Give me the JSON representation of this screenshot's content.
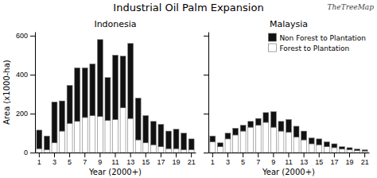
{
  "title": "Industrial Oil Palm Expansion",
  "annotations": [
    "TheTreeMap"
  ],
  "chart_data": [
    {
      "type": "bar",
      "stacked": true,
      "title": "Indonesia",
      "xlabel": "Year (2000+)",
      "ylabel": "Area (x1000-ha)",
      "categories": [
        1,
        null,
        3,
        null,
        5,
        null,
        7,
        null,
        9,
        null,
        11,
        null,
        13,
        null,
        15,
        null,
        17,
        null,
        19,
        null,
        21
      ],
      "series": [
        {
          "color": "#ffffff",
          "values": [
            20,
            15,
            50,
            110,
            150,
            160,
            180,
            190,
            185,
            165,
            170,
            230,
            175,
            65,
            50,
            40,
            30,
            20,
            20,
            15,
            15
          ]
        },
        {
          "color": "#111111",
          "values": [
            95,
            70,
            210,
            155,
            195,
            275,
            255,
            265,
            395,
            220,
            330,
            265,
            385,
            215,
            140,
            120,
            115,
            90,
            100,
            85,
            55
          ]
        }
      ],
      "ylim": [
        0,
        620
      ],
      "yticks": [
        0,
        200,
        400,
        600
      ]
    },
    {
      "type": "bar",
      "stacked": true,
      "title": "Malaysia",
      "xlabel": "Year (2000+)",
      "categories": [
        1,
        null,
        3,
        null,
        5,
        null,
        7,
        null,
        9,
        null,
        11,
        null,
        13,
        null,
        15,
        null,
        17,
        null,
        19,
        null,
        21
      ],
      "series": [
        {
          "name": "Forest to Plantation",
          "color": "#ffffff",
          "values": [
            55,
            30,
            70,
            90,
            110,
            130,
            140,
            155,
            130,
            110,
            105,
            80,
            65,
            45,
            40,
            30,
            25,
            18,
            15,
            10,
            8
          ]
        },
        {
          "name": "Non Forest to Plantation",
          "color": "#111111",
          "values": [
            30,
            20,
            30,
            35,
            30,
            30,
            35,
            50,
            80,
            50,
            65,
            55,
            45,
            30,
            30,
            25,
            20,
            12,
            10,
            8,
            6
          ]
        }
      ],
      "ylim": [
        0,
        620
      ],
      "yticks": [
        0,
        200,
        400,
        600
      ],
      "tick_labels": "x",
      "legend": "upper right"
    }
  ]
}
